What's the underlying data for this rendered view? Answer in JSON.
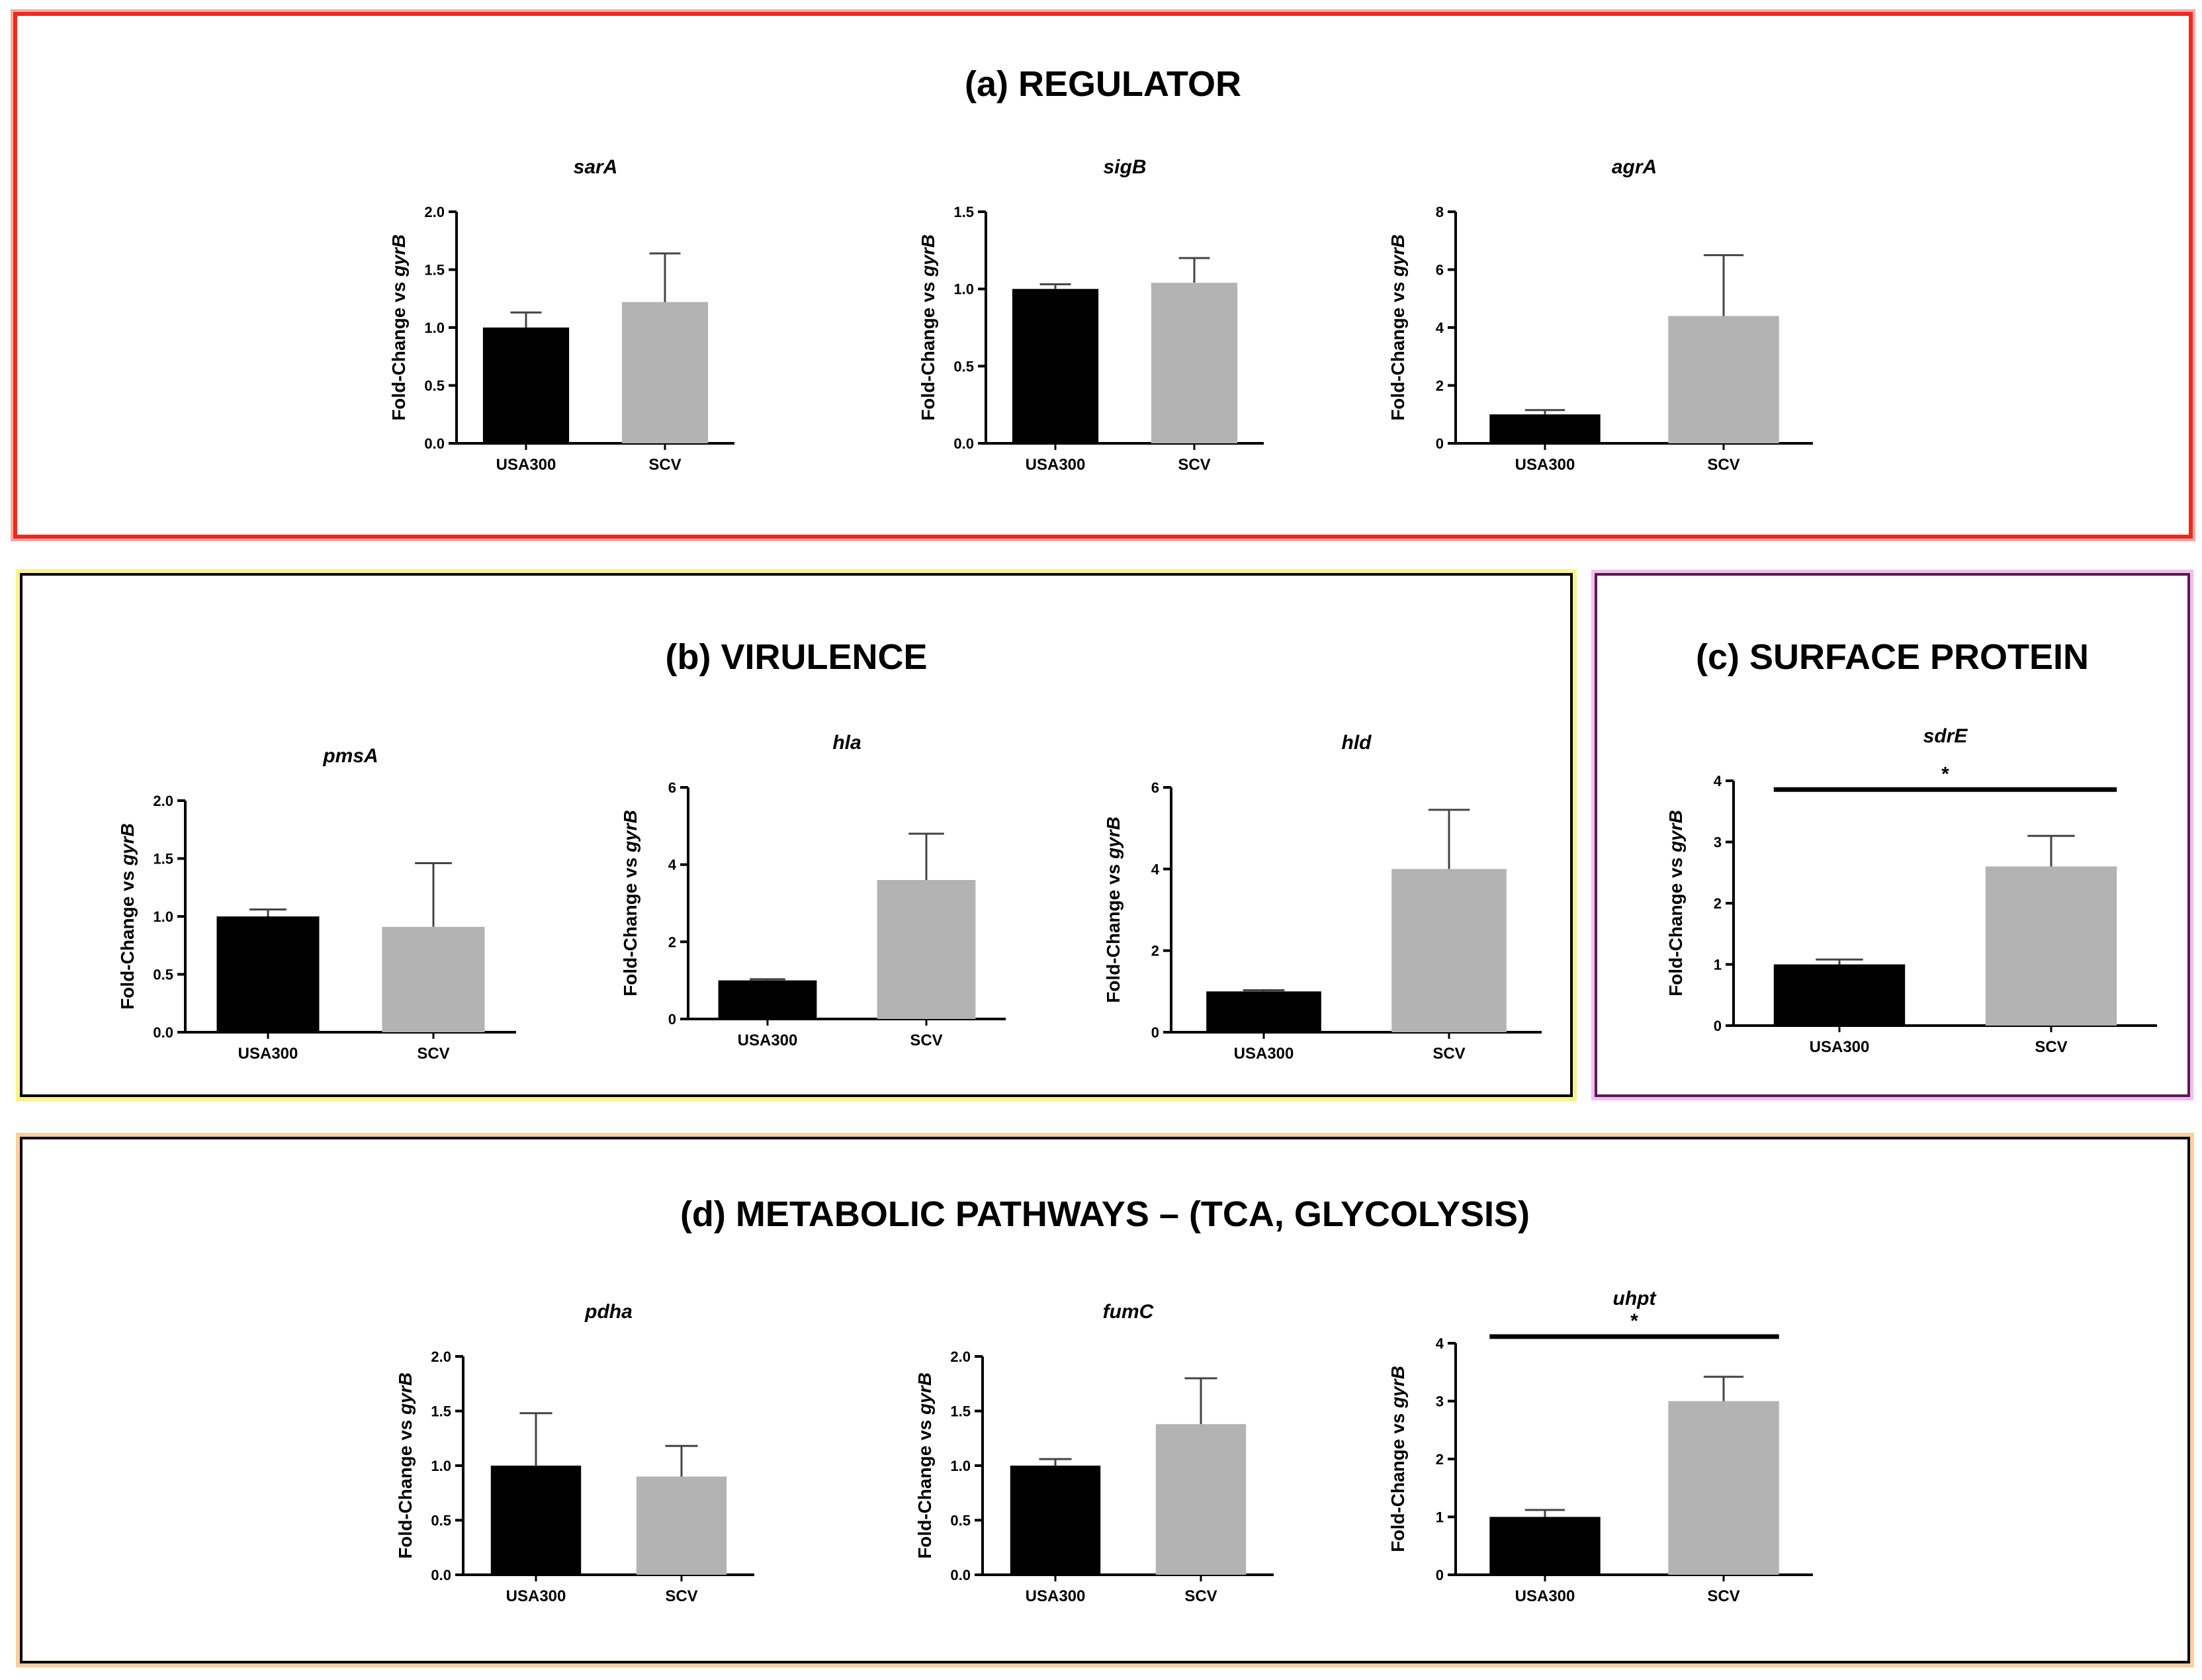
{
  "figure": {
    "panels": [
      {
        "id": "a",
        "title": "(a) REGULATOR"
      },
      {
        "id": "b",
        "title": "(b) VIRULENCE"
      },
      {
        "id": "c",
        "title": "(c) SURFACE PROTEIN"
      },
      {
        "id": "d",
        "title": "(d) METABOLIC PATHWAYS – (TCA, GLYCOLYSIS)"
      }
    ]
  },
  "colors": {
    "usa300": "#000000",
    "scv": "#b3b3b3",
    "panel_a_border": "#ee2a1e",
    "panel_b_border": "#000000",
    "panel_c_border": "#5a1a4f",
    "panel_d_border": "#000000"
  },
  "chart_data": [
    {
      "type": "bar",
      "panel": "a",
      "title": "sarA",
      "ylabel_prefix": "Fold-Change vs ",
      "ylabel_gene": "gyrB",
      "categories": [
        "USA300",
        "SCV"
      ],
      "values": [
        1.0,
        1.22
      ],
      "errors": [
        0.13,
        0.42
      ],
      "ylim": [
        0,
        2.0
      ],
      "yticks": [
        "0.0",
        "0.5",
        "1.0",
        "1.5",
        "2.0"
      ],
      "significance": null
    },
    {
      "type": "bar",
      "panel": "a",
      "title": "sigB",
      "ylabel_prefix": "Fold-Change vs ",
      "ylabel_gene": "gyrB",
      "categories": [
        "USA300",
        "SCV"
      ],
      "values": [
        1.0,
        1.04
      ],
      "errors": [
        0.03,
        0.16
      ],
      "ylim": [
        0,
        1.5
      ],
      "yticks": [
        "0.0",
        "0.5",
        "1.0",
        "1.5"
      ],
      "significance": null
    },
    {
      "type": "bar",
      "panel": "a",
      "title": "agrA",
      "ylabel_prefix": "Fold-Change vs ",
      "ylabel_gene": "gyrB",
      "categories": [
        "USA300",
        "SCV"
      ],
      "values": [
        1.0,
        4.4
      ],
      "errors": [
        0.15,
        2.1
      ],
      "ylim": [
        0,
        8
      ],
      "yticks": [
        "0",
        "2",
        "4",
        "6",
        "8"
      ],
      "significance": null
    },
    {
      "type": "bar",
      "panel": "b",
      "title": "pmsA",
      "ylabel_prefix": "Fold-Change vs ",
      "ylabel_gene": "gyrB",
      "categories": [
        "USA300",
        "SCV"
      ],
      "values": [
        1.0,
        0.91
      ],
      "errors": [
        0.06,
        0.55
      ],
      "ylim": [
        0,
        2.0
      ],
      "yticks": [
        "0.0",
        "0.5",
        "1.0",
        "1.5",
        "2.0"
      ],
      "significance": null
    },
    {
      "type": "bar",
      "panel": "b",
      "title": "hla",
      "ylabel_prefix": "Fold-Change vs ",
      "ylabel_gene": "gyrB",
      "categories": [
        "USA300",
        "SCV"
      ],
      "values": [
        1.0,
        3.6
      ],
      "errors": [
        0.03,
        1.2
      ],
      "ylim": [
        0,
        6
      ],
      "yticks": [
        "0",
        "2",
        "4",
        "6"
      ],
      "significance": null
    },
    {
      "type": "bar",
      "panel": "b",
      "title": "hld",
      "ylabel_prefix": "Fold-Change vs ",
      "ylabel_gene": "gyrB",
      "categories": [
        "USA300",
        "SCV"
      ],
      "values": [
        1.0,
        4.0
      ],
      "errors": [
        0.03,
        1.45
      ],
      "ylim": [
        0,
        6
      ],
      "yticks": [
        "0",
        "2",
        "4",
        "6"
      ],
      "significance": null
    },
    {
      "type": "bar",
      "panel": "c",
      "title": "sdrE",
      "ylabel_prefix": "Fold-Change vs ",
      "ylabel_gene": "gyrB",
      "categories": [
        "USA300",
        "SCV"
      ],
      "values": [
        1.0,
        2.6
      ],
      "errors": [
        0.08,
        0.5
      ],
      "ylim": [
        0,
        4
      ],
      "yticks": [
        "0",
        "1",
        "2",
        "3",
        "4"
      ],
      "significance": "*"
    },
    {
      "type": "bar",
      "panel": "d",
      "title": "pdha",
      "ylabel_prefix": "Fold-Change vs ",
      "ylabel_gene": "gyrB",
      "categories": [
        "USA300",
        "SCV"
      ],
      "values": [
        1.0,
        0.9
      ],
      "errors": [
        0.48,
        0.28
      ],
      "ylim": [
        0,
        2.0
      ],
      "yticks": [
        "0.0",
        "0.5",
        "1.0",
        "1.5",
        "2.0"
      ],
      "significance": null
    },
    {
      "type": "bar",
      "panel": "d",
      "title": "fumC",
      "ylabel_prefix": "Fold-Change vs ",
      "ylabel_gene": "gyrB",
      "categories": [
        "USA300",
        "SCV"
      ],
      "values": [
        1.0,
        1.38
      ],
      "errors": [
        0.06,
        0.42
      ],
      "ylim": [
        0,
        2.0
      ],
      "yticks": [
        "0.0",
        "0.5",
        "1.0",
        "1.5",
        "2.0"
      ],
      "significance": null
    },
    {
      "type": "bar",
      "panel": "d",
      "title": "uhpt",
      "ylabel_prefix": "Fold-Change vs ",
      "ylabel_gene": "gyrB",
      "categories": [
        "USA300",
        "SCV"
      ],
      "values": [
        1.0,
        3.0
      ],
      "errors": [
        0.12,
        0.42
      ],
      "ylim": [
        0,
        4
      ],
      "yticks": [
        "0",
        "1",
        "2",
        "3",
        "4"
      ],
      "significance": "*"
    }
  ]
}
